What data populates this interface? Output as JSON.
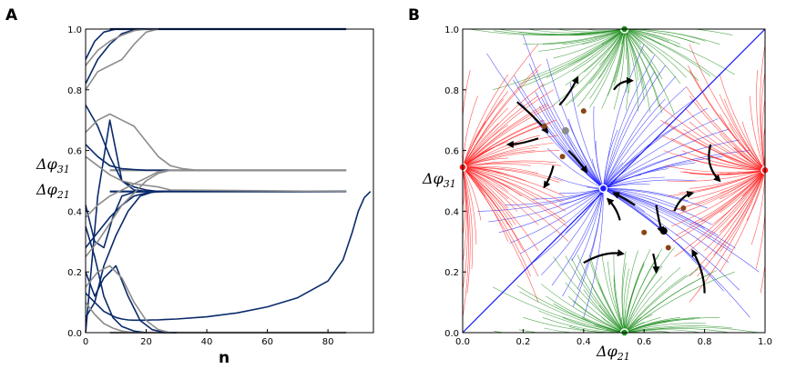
{
  "panels": {
    "a_letter": "A",
    "b_letter": "B"
  },
  "colors": {
    "phi31": "#8c8c8c",
    "phi21": "#0a2a6b",
    "red_basin": "#ff1a1a",
    "green_basin": "#1a8c1a",
    "blue_basin": "#1a1aff",
    "fixed_point_brown": "#8b4513",
    "arrow": "#000000"
  },
  "chart_data": [
    {
      "type": "line",
      "panel": "A",
      "xlabel": "n",
      "ylabel": "",
      "xlim": [
        0,
        95
      ],
      "ylim": [
        0,
        1.0
      ],
      "x_ticks": [
        "0",
        "20",
        "40",
        "60",
        "80"
      ],
      "y_ticks": [
        "0.0",
        "0.2",
        "0.4",
        "0.6",
        "0.8",
        "1.0"
      ],
      "grid": false,
      "legend": [
        {
          "label": "Δφ31",
          "color": "#8c8c8c"
        },
        {
          "label": "Δφ21",
          "color": "#0a2a6b"
        }
      ],
      "legend_text": {
        "phi31_main": "Δφ",
        "phi31_sub": "31",
        "phi21_main": "Δφ",
        "phi21_sub": "21"
      },
      "converged_levels": [
        0.0,
        0.465,
        0.535,
        1.0
      ],
      "series": [
        {
          "series": "Δφ21",
          "values_x": [
            0,
            2,
            4,
            6,
            8,
            10,
            12,
            14,
            16,
            18,
            20,
            22,
            24,
            26,
            30,
            40,
            50,
            60,
            70,
            80,
            85,
            88,
            90,
            92,
            94
          ],
          "values_y": [
            0.13,
            0.11,
            0.09,
            0.07,
            0.06,
            0.05,
            0.045,
            0.042,
            0.041,
            0.041,
            0.041,
            0.042,
            0.042,
            0.043,
            0.045,
            0.052,
            0.065,
            0.085,
            0.115,
            0.17,
            0.24,
            0.33,
            0.4,
            0.445,
            0.465
          ]
        },
        {
          "series": "Δφ21",
          "values_x": [
            0,
            4,
            8,
            12,
            16,
            20,
            24,
            28,
            32,
            40,
            86
          ],
          "values_y": [
            0.0,
            0.45,
            0.7,
            0.5,
            0.48,
            0.47,
            0.465,
            0.465,
            0.465,
            0.465,
            0.465
          ]
        },
        {
          "series": "Δφ21",
          "values_x": [
            0,
            4,
            8,
            12,
            16,
            20,
            24,
            28,
            40,
            86
          ],
          "values_y": [
            0.28,
            0.33,
            0.38,
            0.42,
            0.45,
            0.46,
            0.465,
            0.465,
            0.465,
            0.465
          ]
        },
        {
          "series": "Δφ21",
          "values_x": [
            0,
            4,
            8,
            12,
            16,
            20,
            24,
            28,
            40,
            86
          ],
          "values_y": [
            0.62,
            0.58,
            0.55,
            0.54,
            0.537,
            0.535,
            0.535,
            0.535,
            0.535,
            0.535
          ]
        },
        {
          "series": "Δφ21",
          "values_x": [
            0,
            3,
            6,
            10,
            14,
            18,
            22,
            26,
            30
          ],
          "values_y": [
            0.2,
            0.12,
            0.18,
            0.22,
            0.12,
            0.04,
            0.01,
            0.0,
            0.0
          ]
        },
        {
          "series": "Δφ21",
          "values_x": [
            0,
            3,
            6,
            10,
            14,
            18,
            22
          ],
          "values_y": [
            0.9,
            0.96,
            0.99,
            1.0,
            1.0,
            1.0,
            1.0
          ]
        },
        {
          "series": "Δφ21",
          "values_x": [
            0,
            4,
            8,
            12,
            16,
            20,
            24,
            28,
            32,
            40,
            86
          ],
          "values_y": [
            0.75,
            0.68,
            0.58,
            0.5,
            0.47,
            0.466,
            0.465,
            0.465,
            0.465,
            0.465,
            0.465
          ]
        },
        {
          "series": "Δφ21",
          "values_x": [
            0,
            3,
            6,
            9,
            12,
            16,
            20
          ],
          "values_y": [
            0.35,
            0.25,
            0.12,
            0.05,
            0.02,
            0.005,
            0.0
          ]
        },
        {
          "series": "Δφ21",
          "values_x": [
            0,
            3,
            6,
            9,
            12,
            16,
            20,
            24
          ],
          "values_y": [
            0.42,
            0.3,
            0.28,
            0.38,
            0.45,
            0.463,
            0.465,
            0.465
          ]
        },
        {
          "series": "Δφ21",
          "values_x": [
            0,
            3,
            6,
            10,
            14,
            18,
            22,
            26
          ],
          "values_y": [
            0.05,
            0.1,
            0.22,
            0.32,
            0.4,
            0.45,
            0.463,
            0.465
          ]
        },
        {
          "series": "Δφ21",
          "values_x": [
            0,
            4,
            8,
            12,
            16,
            20
          ],
          "values_y": [
            0.82,
            0.9,
            0.95,
            0.985,
            0.998,
            1.0
          ]
        },
        {
          "series": "Δφ31",
          "values_x": [
            0,
            4,
            8,
            12,
            16,
            20,
            24,
            28,
            32,
            36,
            40,
            86
          ],
          "values_y": [
            0.66,
            0.7,
            0.72,
            0.7,
            0.68,
            0.63,
            0.58,
            0.55,
            0.54,
            0.536,
            0.535,
            0.535
          ]
        },
        {
          "series": "Δφ31",
          "values_x": [
            0,
            4,
            8,
            12,
            16,
            20,
            24,
            28,
            86
          ],
          "values_y": [
            0.38,
            0.42,
            0.45,
            0.47,
            0.49,
            0.51,
            0.53,
            0.535,
            0.535
          ]
        },
        {
          "series": "Δφ31",
          "values_x": [
            0,
            4,
            8,
            12,
            16,
            20,
            24
          ],
          "values_y": [
            0.88,
            0.93,
            0.96,
            0.98,
            0.995,
            1.0,
            1.0
          ]
        },
        {
          "series": "Δφ31",
          "values_x": [
            0,
            4,
            8,
            12,
            16,
            20,
            24,
            28
          ],
          "values_y": [
            0.15,
            0.2,
            0.22,
            0.18,
            0.1,
            0.04,
            0.01,
            0.0
          ]
        },
        {
          "series": "Δφ31",
          "values_x": [
            0,
            4,
            8,
            12,
            16,
            20,
            24,
            28,
            86
          ],
          "values_y": [
            0.58,
            0.55,
            0.52,
            0.5,
            0.49,
            0.485,
            0.48,
            0.47,
            0.465
          ]
        },
        {
          "series": "Δφ31",
          "values_x": [
            0,
            4,
            8,
            12,
            16,
            20,
            24
          ],
          "values_y": [
            0.8,
            0.86,
            0.88,
            0.9,
            0.95,
            0.99,
            1.0
          ]
        },
        {
          "series": "Δφ31",
          "values_x": [
            0,
            4,
            8,
            12,
            16,
            20,
            24,
            28,
            86
          ],
          "values_y": [
            0.25,
            0.3,
            0.36,
            0.42,
            0.46,
            0.5,
            0.525,
            0.535,
            0.535
          ]
        },
        {
          "series": "Δφ31",
          "values_x": [
            0,
            3,
            6,
            9,
            12,
            16,
            20
          ],
          "values_y": [
            0.1,
            0.06,
            0.03,
            0.015,
            0.005,
            0.0,
            0.0
          ]
        }
      ]
    },
    {
      "type": "scatter",
      "panel": "B",
      "title": "",
      "xlabel": "Δφ21",
      "ylabel": "Δφ31",
      "axis_label_text": {
        "x_main": "Δφ",
        "x_sub": "21",
        "y_main": "Δφ",
        "y_sub": "31"
      },
      "xlim": [
        0.0,
        1.0
      ],
      "ylim": [
        0.0,
        1.0
      ],
      "x_ticks": [
        "0.0",
        "0.2",
        "0.4",
        "0.6",
        "0.8",
        "1.0"
      ],
      "y_ticks": [
        "0.0",
        "0.2",
        "0.4",
        "0.6",
        "0.8",
        "1.0"
      ],
      "grid": false,
      "stable_points": [
        {
          "x": 0.465,
          "y": 0.475,
          "fill": "#1a1aff"
        },
        {
          "x": 0.0,
          "y": 0.545,
          "fill": "#ff1a1a"
        },
        {
          "x": 1.0,
          "y": 0.535,
          "fill": "#ff1a1a"
        },
        {
          "x": 0.535,
          "y": 1.0,
          "fill": "#1a8c1a"
        },
        {
          "x": 0.535,
          "y": 0.0,
          "fill": "#1a8c1a"
        }
      ],
      "unstable_points": [
        {
          "x": 0.34,
          "y": 0.665,
          "fill": "#8c8c8c"
        },
        {
          "x": 0.665,
          "y": 0.335,
          "fill": "#000000"
        }
      ],
      "saddle_points": [
        {
          "x": 0.27,
          "y": 0.68
        },
        {
          "x": 0.4,
          "y": 0.73
        },
        {
          "x": 0.33,
          "y": 0.58
        },
        {
          "x": 0.6,
          "y": 0.33
        },
        {
          "x": 0.73,
          "y": 0.41
        },
        {
          "x": 0.68,
          "y": 0.28
        }
      ],
      "arrows": [
        {
          "points": [
            [
              0.18,
              0.76
            ],
            [
              0.25,
              0.7
            ],
            [
              0.28,
              0.66
            ]
          ]
        },
        {
          "points": [
            [
              0.32,
              0.75
            ],
            [
              0.35,
              0.78
            ],
            [
              0.38,
              0.84
            ]
          ]
        },
        {
          "points": [
            [
              0.25,
              0.64
            ],
            [
              0.19,
              0.62
            ],
            [
              0.15,
              0.62
            ]
          ]
        },
        {
          "points": [
            [
              0.3,
              0.55
            ],
            [
              0.29,
              0.51
            ],
            [
              0.27,
              0.48
            ]
          ]
        },
        {
          "points": [
            [
              0.35,
              0.6
            ],
            [
              0.38,
              0.57
            ],
            [
              0.41,
              0.53
            ]
          ]
        },
        {
          "points": [
            [
              0.5,
              0.8
            ],
            [
              0.52,
              0.83
            ],
            [
              0.56,
              0.83
            ]
          ]
        },
        {
          "points": [
            [
              0.82,
              0.62
            ],
            [
              0.8,
              0.55
            ],
            [
              0.85,
              0.5
            ]
          ]
        },
        {
          "points": [
            [
              0.64,
              0.42
            ],
            [
              0.65,
              0.36
            ],
            [
              0.66,
              0.33
            ]
          ]
        },
        {
          "points": [
            [
              0.52,
              0.37
            ],
            [
              0.51,
              0.41
            ],
            [
              0.48,
              0.44
            ]
          ]
        },
        {
          "points": [
            [
              0.57,
              0.42
            ],
            [
              0.54,
              0.44
            ],
            [
              0.5,
              0.46
            ]
          ]
        },
        {
          "points": [
            [
              0.4,
              0.23
            ],
            [
              0.47,
              0.27
            ],
            [
              0.53,
              0.26
            ]
          ]
        },
        {
          "points": [
            [
              0.63,
              0.26
            ],
            [
              0.64,
              0.22
            ],
            [
              0.64,
              0.2
            ]
          ]
        },
        {
          "points": [
            [
              0.8,
              0.13
            ],
            [
              0.8,
              0.2
            ],
            [
              0.76,
              0.27
            ]
          ]
        },
        {
          "points": [
            [
              0.7,
              0.4
            ],
            [
              0.72,
              0.45
            ],
            [
              0.76,
              0.46
            ]
          ]
        }
      ]
    }
  ]
}
